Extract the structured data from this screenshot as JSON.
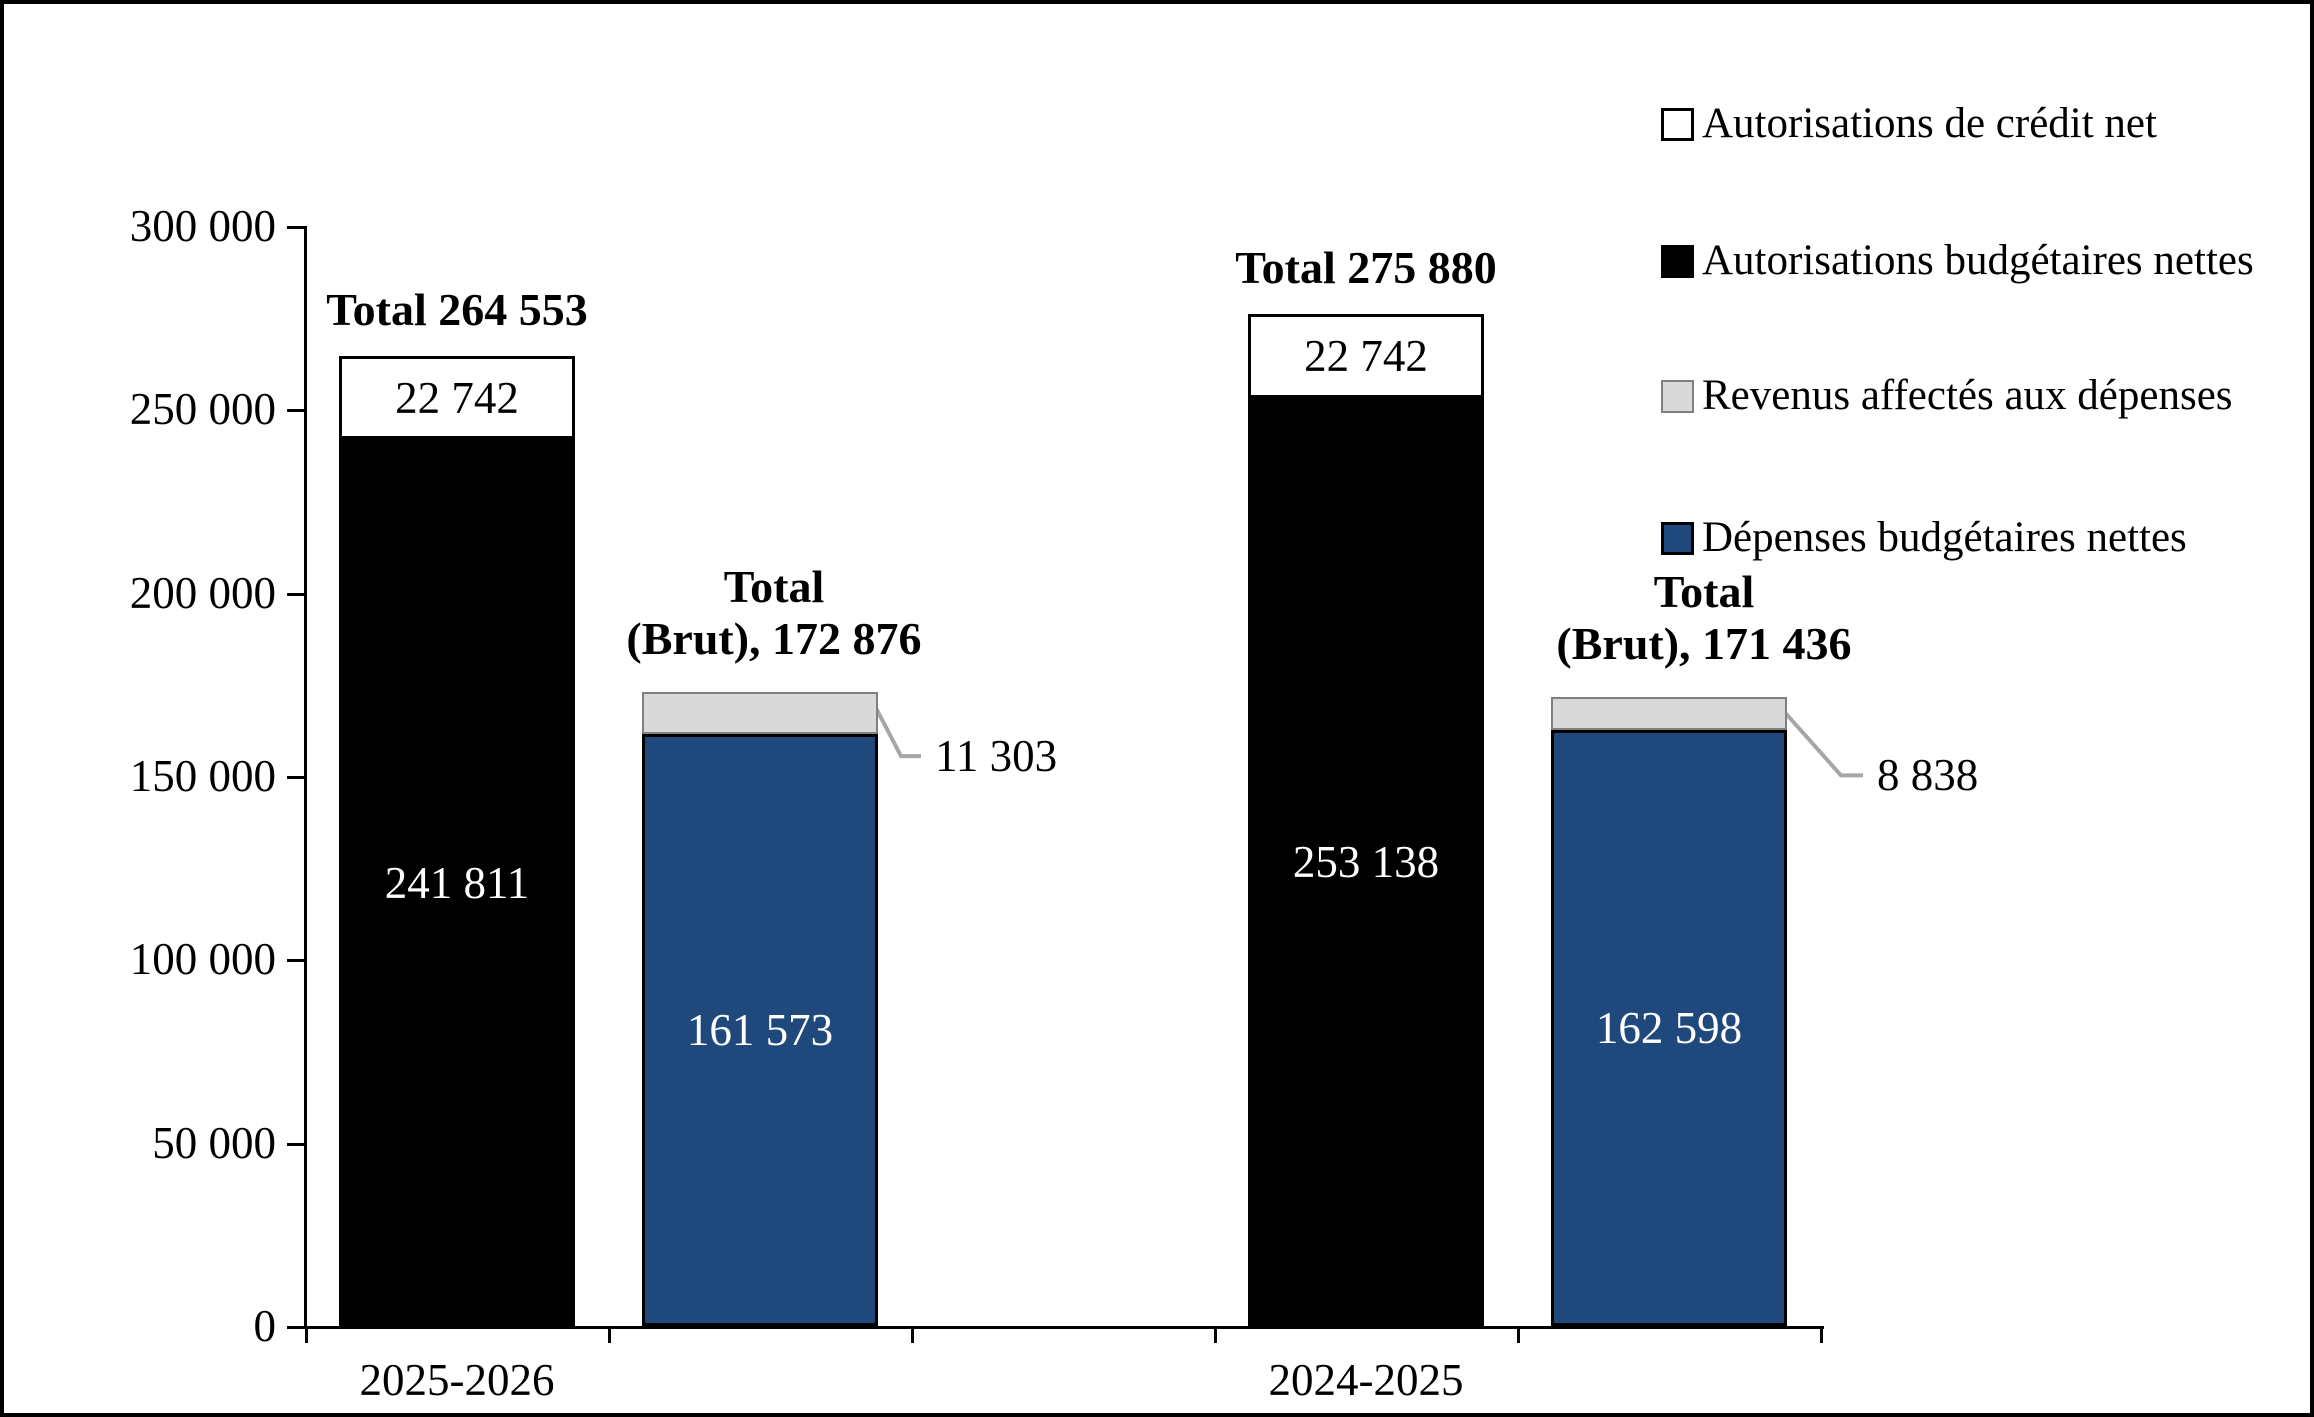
{
  "frame": {
    "background": "#FFFFFF",
    "border_color": "#000000"
  },
  "chart_data": {
    "type": "bar",
    "subtype": "clustered-stacked-column",
    "title": "",
    "categories": [
      "2025-2026",
      "2024-2025"
    ],
    "y_axis": {
      "min": 0,
      "max": 300000,
      "step": 50000,
      "tick_labels": [
        "0",
        "50 000",
        "100 000",
        "150 000",
        "200 000",
        "250 000",
        "300 000"
      ],
      "gridlines": false
    },
    "legend": {
      "position": "right",
      "items": [
        {
          "key": "credit-net",
          "label": "Autorisations de crédit net",
          "color": "#FFFFFF",
          "border": "#000000"
        },
        {
          "key": "budget-net",
          "label": "Autorisations budgétaires nettes",
          "color": "#000000",
          "border": "#000000"
        },
        {
          "key": "revenus",
          "label": "Revenus affectés aux dépenses",
          "color": "#D9D9D9",
          "border": "#808080"
        },
        {
          "key": "depenses",
          "label": "Dépenses budgétaires nettes",
          "color": "#1F497D",
          "border": "#000000"
        }
      ]
    },
    "leader_color": "#A6A6A6",
    "groups": [
      {
        "category": "2025-2026",
        "bars": [
          {
            "id": "net",
            "total_label": "Total 264 553",
            "segments": [
              {
                "series": "Autorisations budgétaires nettes",
                "value": 241811,
                "label": "241 811",
                "label_color": "#FFFFFF"
              },
              {
                "series": "Autorisations de crédit net",
                "value": 22742,
                "label": "22 742",
                "label_color": "#000000"
              }
            ]
          },
          {
            "id": "brut",
            "total_label_lines": [
              "Total",
              "(Brut), 172 876"
            ],
            "segments": [
              {
                "series": "Dépenses budgétaires nettes",
                "value": 161573,
                "label": "161 573",
                "label_color": "#FFFFFF"
              },
              {
                "series": "Revenus affectés aux dépenses",
                "value": 11303,
                "label": "11 303",
                "callout": true
              }
            ]
          }
        ]
      },
      {
        "category": "2024-2025",
        "bars": [
          {
            "id": "net",
            "total_label": "Total 275 880",
            "segments": [
              {
                "series": "Autorisations budgétaires nettes",
                "value": 253138,
                "label": "253 138",
                "label_color": "#FFFFFF"
              },
              {
                "series": "Autorisations de crédit net",
                "value": 22742,
                "label": "22 742",
                "label_color": "#000000"
              }
            ]
          },
          {
            "id": "brut",
            "total_label_lines": [
              "Total",
              "(Brut), 171 436"
            ],
            "segments": [
              {
                "series": "Dépenses budgétaires nettes",
                "value": 162598,
                "label": "162 598",
                "label_color": "#FFFFFF"
              },
              {
                "series": "Revenus affectés aux dépenses",
                "value": 8838,
                "label": "8 838",
                "callout": true
              }
            ]
          }
        ]
      }
    ]
  }
}
